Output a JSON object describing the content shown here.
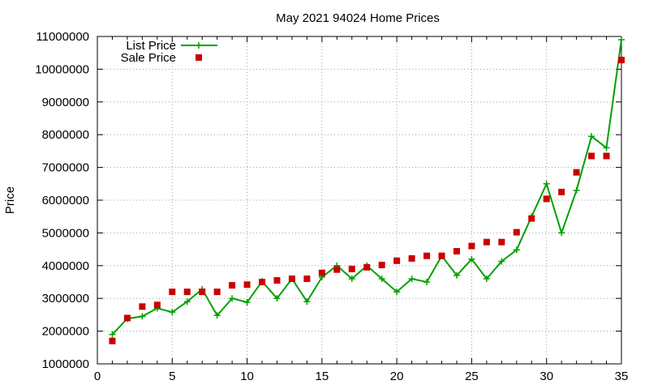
{
  "chart_data": {
    "type": "line",
    "title": "May 2021 94024 Home Prices",
    "xlabel": "",
    "ylabel": "Price",
    "xlim": [
      0,
      35
    ],
    "ylim": [
      1000000,
      11000000
    ],
    "x_ticks": [
      "0",
      "5",
      "10",
      "15",
      "20",
      "25",
      "30",
      "35"
    ],
    "y_ticks": [
      "1000000",
      "2000000",
      "3000000",
      "4000000",
      "5000000",
      "6000000",
      "7000000",
      "8000000",
      "9000000",
      "10000000",
      "11000000"
    ],
    "grid": true,
    "legend_position": "top-left",
    "x": [
      1,
      2,
      3,
      4,
      5,
      6,
      7,
      8,
      9,
      10,
      11,
      12,
      13,
      14,
      15,
      16,
      17,
      18,
      19,
      20,
      21,
      22,
      23,
      24,
      25,
      26,
      27,
      28,
      29,
      30,
      31,
      32,
      33,
      34,
      35
    ],
    "series": [
      {
        "name": "List Price",
        "style": "line-plus",
        "color": "#00a000",
        "values": [
          1900000,
          2380000,
          2450000,
          2700000,
          2580000,
          2900000,
          3280000,
          2480000,
          3000000,
          2880000,
          3520000,
          3000000,
          3600000,
          2900000,
          3650000,
          4000000,
          3600000,
          4000000,
          3600000,
          3200000,
          3600000,
          3500000,
          4300000,
          3700000,
          4200000,
          3600000,
          4130000,
          4480000,
          5500000,
          6500000,
          5000000,
          6300000,
          7950000,
          7600000,
          10900000
        ]
      },
      {
        "name": "Sale Price",
        "style": "square",
        "color": "#cc0000",
        "values": [
          1700000,
          2400000,
          2750000,
          2800000,
          3200000,
          3200000,
          3200000,
          3200000,
          3400000,
          3420000,
          3500000,
          3550000,
          3600000,
          3600000,
          3780000,
          3880000,
          3900000,
          3950000,
          4020000,
          4150000,
          4220000,
          4300000,
          4300000,
          4440000,
          4600000,
          4720000,
          4720000,
          5020000,
          5440000,
          6040000,
          6250000,
          6850000,
          7350000,
          7350000,
          10280000
        ]
      }
    ]
  }
}
